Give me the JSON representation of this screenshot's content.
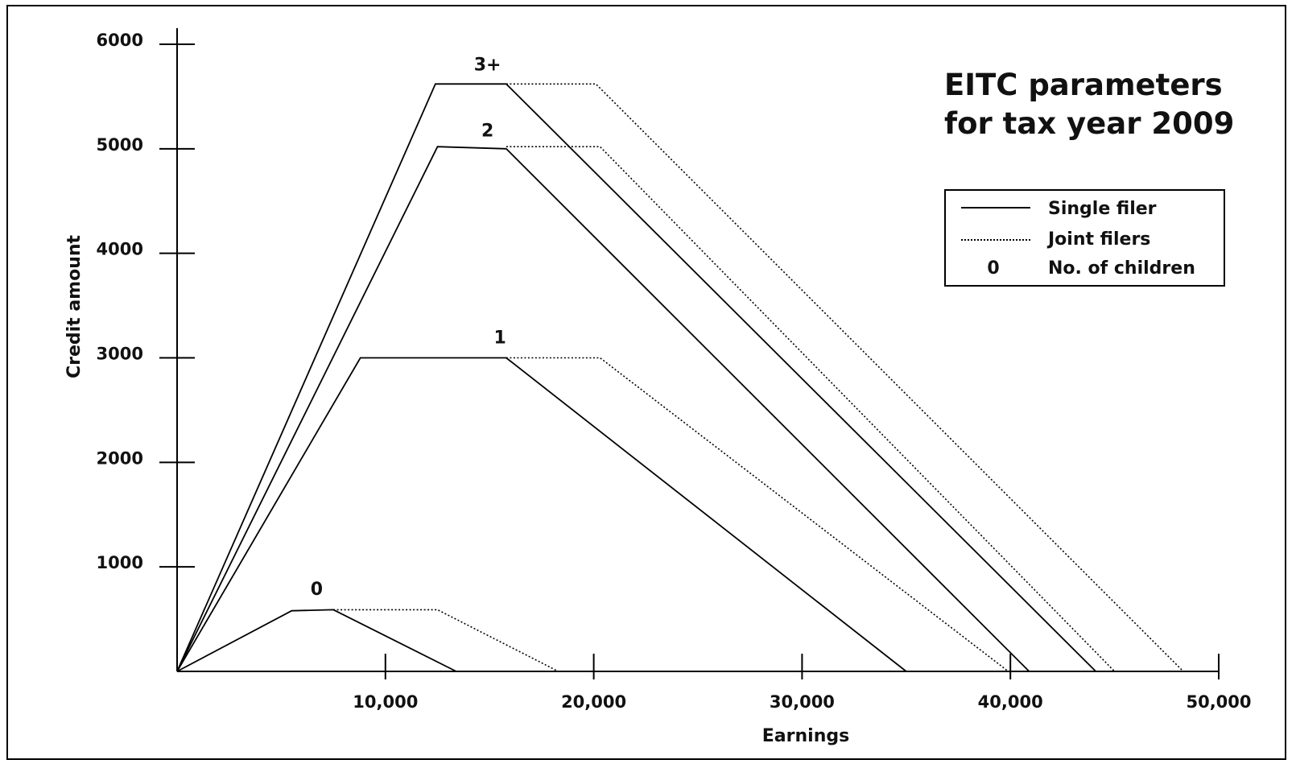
{
  "chart_data": {
    "type": "line",
    "title": "EITC parameters\nfor tax year 2009",
    "title_lines": [
      "EITC parameters",
      "for tax year 2009"
    ],
    "xlabel": "Earnings",
    "ylabel": "Credit amount",
    "xlim": [
      0,
      50000
    ],
    "ylim": [
      0,
      6000
    ],
    "x_ticks": [
      10000,
      20000,
      30000,
      40000,
      50000
    ],
    "x_tick_labels": [
      "10,000",
      "20,000",
      "30,000",
      "40,000",
      "50,000"
    ],
    "y_ticks": [
      1000,
      2000,
      3000,
      4000,
      5000,
      6000
    ],
    "y_tick_labels": [
      "1000",
      "2000",
      "3000",
      "4000",
      "5000",
      "6000"
    ],
    "grid": false,
    "legend_position": "top-right",
    "legend": [
      {
        "style": "solid",
        "label": "Single filer"
      },
      {
        "style": "dotted",
        "label": "Joint filers"
      },
      {
        "style": "marker",
        "marker": "0",
        "label": "No. of children"
      }
    ],
    "series": [
      {
        "children": "0",
        "style": "solid",
        "x": [
          0,
          5500,
          7500,
          13400
        ],
        "y": [
          0,
          580,
          590,
          0
        ]
      },
      {
        "children": "0",
        "style": "dotted",
        "x": [
          7500,
          12500,
          18300
        ],
        "y": [
          590,
          590,
          0
        ]
      },
      {
        "children": "1",
        "style": "solid",
        "x": [
          0,
          8800,
          15800,
          35000
        ],
        "y": [
          0,
          3000,
          3000,
          0
        ]
      },
      {
        "children": "1",
        "style": "dotted",
        "x": [
          15800,
          20300,
          39900
        ],
        "y": [
          3000,
          3000,
          0
        ]
      },
      {
        "children": "2",
        "style": "solid",
        "x": [
          0,
          12500,
          15800,
          40900
        ],
        "y": [
          0,
          5020,
          5000,
          0
        ]
      },
      {
        "children": "2",
        "style": "dotted",
        "x": [
          15800,
          20300,
          45000
        ],
        "y": [
          5020,
          5020,
          0
        ]
      },
      {
        "children": "3+",
        "style": "solid",
        "x": [
          0,
          12400,
          15800,
          44100
        ],
        "y": [
          0,
          5620,
          5620,
          0
        ]
      },
      {
        "children": "3+",
        "style": "dotted",
        "x": [
          15800,
          20100,
          48300
        ],
        "y": [
          5620,
          5620,
          0
        ]
      }
    ],
    "curve_labels": [
      {
        "text": "0",
        "x": 6700,
        "y": 730
      },
      {
        "text": "1",
        "x": 15500,
        "y": 3140
      },
      {
        "text": "2",
        "x": 14900,
        "y": 5120
      },
      {
        "text": "3+",
        "x": 14900,
        "y": 5750
      }
    ]
  }
}
